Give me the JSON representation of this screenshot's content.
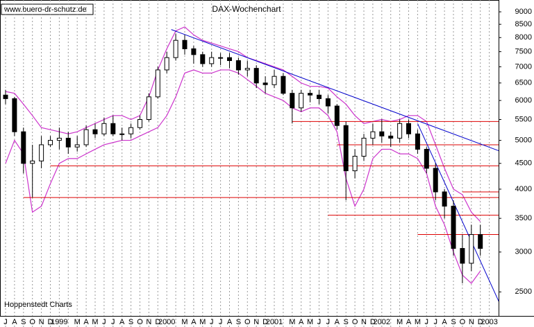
{
  "chart_data": {
    "type": "candlestick",
    "title": "DAX-Wochenchart",
    "source": "www.buero-dr-schutz.de",
    "credit": "Hoppenstedt Charts",
    "log_scale": true,
    "categories": [
      "J",
      "A",
      "S",
      "O",
      "N",
      "D",
      "1999",
      null,
      "M",
      "A",
      "M",
      "J",
      "J",
      "A",
      "S",
      "O",
      "N",
      "D",
      "2000",
      null,
      "M",
      "A",
      "M",
      "J",
      "J",
      "A",
      "S",
      "O",
      "N",
      "D",
      "2001",
      null,
      "M",
      "A",
      "M",
      "J",
      "J",
      "A",
      "S",
      "O",
      "N",
      "D",
      "2002",
      null,
      "M",
      "A",
      "M",
      "J",
      "J",
      "A",
      "S",
      "O",
      "N",
      "D",
      "2003"
    ],
    "open": [
      6150,
      6050,
      5200,
      4500,
      4550,
      4900,
      5000,
      5050,
      4850,
      4900,
      5250,
      5150,
      5400,
      5150,
      5150,
      5300,
      5500,
      6100,
      6900,
      7300,
      7900,
      7600,
      7400,
      7100,
      7300,
      7300,
      7200,
      6900,
      6950,
      6500,
      6450,
      6700,
      6200,
      5800,
      6200,
      6150,
      6050,
      5850,
      5350,
      4350,
      4650,
      5050,
      5200,
      5100,
      5050,
      5400,
      5150,
      4800,
      4400,
      3950,
      3700,
      3050,
      2850,
      3250,
      null
    ],
    "high": [
      6300,
      6100,
      5300,
      4900,
      5100,
      5100,
      5300,
      5200,
      5100,
      5350,
      5400,
      5550,
      5600,
      5300,
      5400,
      5600,
      6200,
      7000,
      7500,
      8150,
      8100,
      7700,
      7500,
      7500,
      7450,
      7450,
      7300,
      7200,
      7050,
      6700,
      6900,
      6800,
      6300,
      6300,
      6300,
      6300,
      6150,
      5900,
      5450,
      4800,
      5150,
      5400,
      5500,
      5200,
      5500,
      5500,
      5250,
      4850,
      4500,
      4000,
      3800,
      3250,
      3400,
      3400,
      null
    ],
    "low": [
      5900,
      5100,
      4300,
      3850,
      4400,
      4850,
      4800,
      4700,
      4750,
      4850,
      5050,
      5100,
      5100,
      5000,
      5050,
      5250,
      5450,
      6050,
      6800,
      7200,
      7400,
      7100,
      7000,
      7000,
      7050,
      6950,
      6750,
      6700,
      6350,
      6200,
      6350,
      6150,
      5400,
      5700,
      5950,
      5900,
      5650,
      5250,
      3800,
      4200,
      4550,
      4900,
      4950,
      4850,
      4950,
      5050,
      4700,
      4300,
      3800,
      3500,
      2950,
      2600,
      2750,
      2950,
      null
    ],
    "close": [
      6050,
      5200,
      4500,
      4550,
      4900,
      5000,
      5050,
      4850,
      4900,
      5250,
      5150,
      5400,
      5150,
      5150,
      5300,
      5500,
      6100,
      6900,
      7300,
      7900,
      7600,
      7400,
      7100,
      7300,
      7300,
      7200,
      6900,
      6950,
      6500,
      6450,
      6700,
      6200,
      5800,
      6200,
      6150,
      6050,
      5850,
      5350,
      4350,
      4650,
      5050,
      5200,
      5100,
      5050,
      5400,
      5150,
      4800,
      4400,
      3950,
      3700,
      3050,
      2850,
      3250,
      3050,
      null
    ],
    "bands": {
      "color": "#cc33cc",
      "upper": [
        6250,
        6200,
        5900,
        5600,
        5300,
        5250,
        5200,
        5150,
        5200,
        5300,
        5400,
        5500,
        5600,
        5600,
        5500,
        5600,
        6100,
        6900,
        7600,
        8250,
        8400,
        8100,
        7900,
        7800,
        7700,
        7600,
        7500,
        7300,
        7200,
        7100,
        7000,
        6900,
        6700,
        6500,
        6400,
        6400,
        6350,
        6100,
        5900,
        5600,
        5400,
        5450,
        5500,
        5450,
        5500,
        5600,
        5600,
        5450,
        4900,
        4400,
        4000,
        3900,
        3600,
        3450,
        null
      ],
      "lower": [
        4500,
        5000,
        4700,
        3600,
        3700,
        4100,
        4500,
        4600,
        4600,
        4700,
        4800,
        4900,
        4950,
        5000,
        5000,
        5100,
        5200,
        5300,
        5600,
        6100,
        6800,
        6900,
        6800,
        6800,
        6900,
        6900,
        6800,
        6600,
        6400,
        6200,
        6100,
        6000,
        5800,
        5700,
        5800,
        5800,
        5600,
        5200,
        4200,
        3700,
        4000,
        4600,
        4800,
        4800,
        4700,
        4700,
        4600,
        4300,
        3700,
        3400,
        3000,
        2700,
        2600,
        2750,
        null
      ]
    },
    "levels": {
      "color": "#dd0000",
      "lines": [
        {
          "value": 5450,
          "start": 32
        },
        {
          "value": 4900,
          "start": 37
        },
        {
          "value": 4450,
          "start": 5
        },
        {
          "value": 3850,
          "start": 2
        },
        {
          "value": 3550,
          "start": 36
        },
        {
          "value": 3250,
          "start": 46
        },
        {
          "value": 3950,
          "start": 51
        }
      ]
    },
    "trendlines": {
      "color": "#0000cc",
      "lines": [
        [
          [
            18.5,
            8300
          ],
          [
            56,
            4700
          ]
        ],
        [
          [
            46,
            5400
          ],
          [
            56,
            2200
          ]
        ]
      ]
    },
    "ylim": [
      2240,
      9500
    ],
    "yticks": [
      2500,
      3000,
      3500,
      4000,
      4500,
      5000,
      5500,
      6000,
      6500,
      7000,
      7500,
      8000,
      8500,
      9000
    ]
  }
}
